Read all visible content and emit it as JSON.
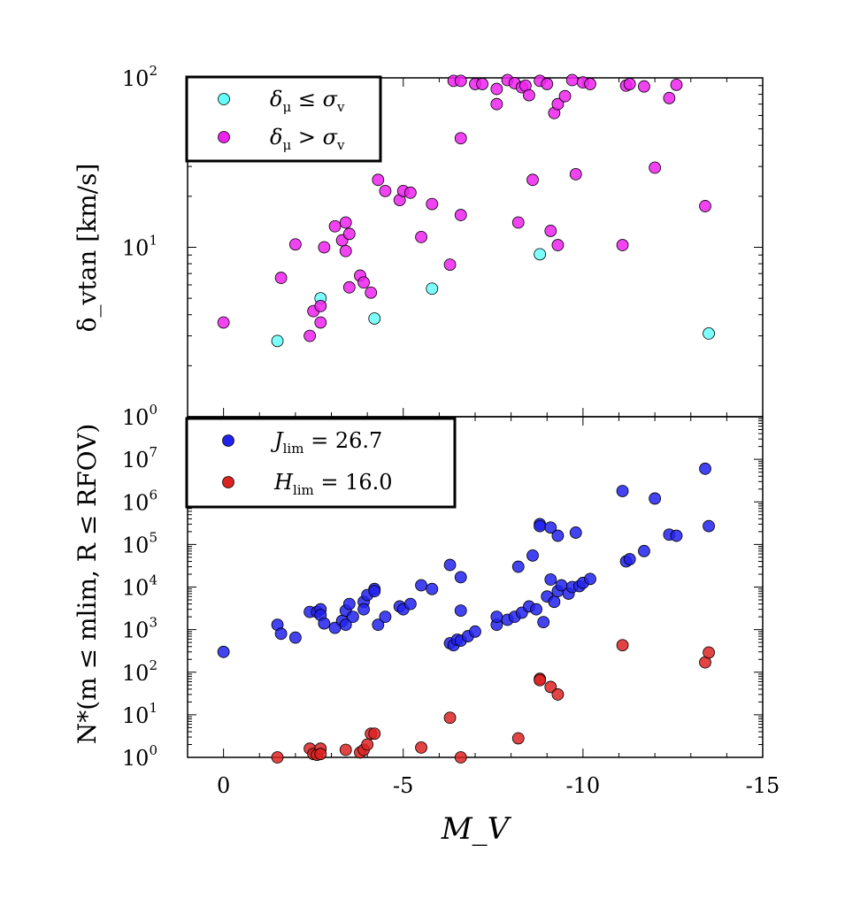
{
  "chart_data": [
    {
      "type": "scatter",
      "panel": "top",
      "ylabel": "δ_vtan [km/s]",
      "xlabel": "",
      "xlim": [
        1,
        -15
      ],
      "ylim": [
        1,
        100
      ],
      "yscale": "log",
      "grid": false,
      "legend_position": "top-left",
      "ytick_labels": [
        {
          "base": "10",
          "exp": "0",
          "value": 1
        },
        {
          "base": "10",
          "exp": "1",
          "value": 10
        },
        {
          "base": "10",
          "exp": "2",
          "value": 100
        }
      ],
      "series": [
        {
          "name": "δμ ≤ σv",
          "legend_main": "δ",
          "legend_sub": "μ",
          "legend_rel": " ≤ σ",
          "legend_sub2": "v",
          "color": "#66ffff",
          "points": [
            [
              -1.5,
              2.8
            ],
            [
              -2.7,
              5.0
            ],
            [
              -4.2,
              3.8
            ],
            [
              -5.8,
              5.7
            ],
            [
              -8.8,
              9.1
            ],
            [
              -13.5,
              3.1
            ]
          ]
        },
        {
          "name": "δμ > σv",
          "legend_main": "δ",
          "legend_sub": "μ",
          "legend_rel": " > σ",
          "legend_sub2": "v",
          "color": "#ee22ee",
          "points": [
            [
              0.0,
              3.6
            ],
            [
              -1.6,
              6.6
            ],
            [
              -2.0,
              10.4
            ],
            [
              -2.4,
              3.0
            ],
            [
              -2.5,
              4.2
            ],
            [
              -2.7,
              3.6
            ],
            [
              -2.7,
              4.5
            ],
            [
              -2.8,
              10.0
            ],
            [
              -3.1,
              13.3
            ],
            [
              -3.3,
              11.0
            ],
            [
              -3.4,
              9.5
            ],
            [
              -3.4,
              14.0
            ],
            [
              -3.5,
              5.8
            ],
            [
              -3.5,
              12.0
            ],
            [
              -3.8,
              6.8
            ],
            [
              -3.9,
              6.2
            ],
            [
              -4.1,
              5.4
            ],
            [
              -4.3,
              25.0
            ],
            [
              -4.5,
              21.5
            ],
            [
              -4.9,
              19.0
            ],
            [
              -5.0,
              21.5
            ],
            [
              -5.2,
              21.0
            ],
            [
              -5.5,
              11.5
            ],
            [
              -5.8,
              18.0
            ],
            [
              -6.3,
              7.9
            ],
            [
              -6.6,
              15.5
            ],
            [
              -6.6,
              44.0
            ],
            [
              -6.4,
              96.0
            ],
            [
              -6.6,
              96.0
            ],
            [
              -7.0,
              92.0
            ],
            [
              -7.2,
              92.0
            ],
            [
              -7.6,
              86.0
            ],
            [
              -7.6,
              70.0
            ],
            [
              -7.9,
              97.0
            ],
            [
              -8.1,
              93.0
            ],
            [
              -8.2,
              14.0
            ],
            [
              -8.3,
              88.0
            ],
            [
              -8.4,
              90.0
            ],
            [
              -8.5,
              79.0
            ],
            [
              -8.6,
              25.0
            ],
            [
              -8.8,
              96.0
            ],
            [
              -9.0,
              92.0
            ],
            [
              -9.1,
              12.5
            ],
            [
              -9.2,
              62.0
            ],
            [
              -9.3,
              10.3
            ],
            [
              -9.3,
              70.0
            ],
            [
              -9.5,
              78.0
            ],
            [
              -9.7,
              97.0
            ],
            [
              -9.8,
              27.0
            ],
            [
              -10.0,
              94.0
            ],
            [
              -10.2,
              92.0
            ],
            [
              -11.1,
              10.3
            ],
            [
              -11.2,
              90.0
            ],
            [
              -11.3,
              92.0
            ],
            [
              -11.7,
              89.0
            ],
            [
              -12.0,
              29.5
            ],
            [
              -12.4,
              76.0
            ],
            [
              -12.6,
              91.0
            ],
            [
              -13.4,
              17.5
            ]
          ]
        }
      ]
    },
    {
      "type": "scatter",
      "panel": "bottom",
      "ylabel": "N*(m ≤ mlim, R ≤ RFOV)",
      "xlabel": "M_V",
      "xlim": [
        1,
        -15
      ],
      "ylim": [
        1,
        100000000
      ],
      "yscale": "log",
      "grid": false,
      "legend_position": "top-left",
      "xtick_labels": [
        {
          "label": "0",
          "value": 0
        },
        {
          "label": "-5",
          "value": -5
        },
        {
          "label": "-10",
          "value": -10
        },
        {
          "label": "-15",
          "value": -15
        }
      ],
      "ytick_labels": [
        {
          "base": "10",
          "exp": "0",
          "value": 1
        },
        {
          "base": "10",
          "exp": "1",
          "value": 10
        },
        {
          "base": "10",
          "exp": "2",
          "value": 100
        },
        {
          "base": "10",
          "exp": "3",
          "value": 1000
        },
        {
          "base": "10",
          "exp": "4",
          "value": 10000
        },
        {
          "base": "10",
          "exp": "5",
          "value": 100000
        },
        {
          "base": "10",
          "exp": "6",
          "value": 1000000
        },
        {
          "base": "10",
          "exp": "7",
          "value": 10000000
        }
      ],
      "series": [
        {
          "name": "Jlim = 26.7",
          "legend_main": "J",
          "legend_sub": "lim",
          "legend_rel": " = 26.7",
          "color": "#2222ee",
          "points": [
            [
              0.0,
              300
            ],
            [
              -1.5,
              1300
            ],
            [
              -1.6,
              800
            ],
            [
              -2.0,
              650
            ],
            [
              -2.4,
              2600
            ],
            [
              -2.6,
              2600
            ],
            [
              -2.7,
              3000
            ],
            [
              -2.7,
              2200
            ],
            [
              -2.8,
              1400
            ],
            [
              -3.1,
              1100
            ],
            [
              -3.3,
              1600
            ],
            [
              -3.4,
              2800
            ],
            [
              -3.4,
              1300
            ],
            [
              -3.5,
              4000
            ],
            [
              -3.6,
              2000
            ],
            [
              -3.9,
              4500
            ],
            [
              -3.9,
              3000
            ],
            [
              -4.0,
              6500
            ],
            [
              -4.2,
              9000
            ],
            [
              -4.2,
              8000
            ],
            [
              -4.3,
              1300
            ],
            [
              -4.5,
              2000
            ],
            [
              -4.9,
              3500
            ],
            [
              -5.0,
              3000
            ],
            [
              -5.2,
              4000
            ],
            [
              -5.5,
              11000
            ],
            [
              -5.8,
              9000
            ],
            [
              -6.3,
              33000
            ],
            [
              -6.3,
              480
            ],
            [
              -6.4,
              430
            ],
            [
              -6.5,
              580
            ],
            [
              -6.6,
              550
            ],
            [
              -6.6,
              2800
            ],
            [
              -6.6,
              17000
            ],
            [
              -6.8,
              700
            ],
            [
              -7.0,
              900
            ],
            [
              -7.6,
              1300
            ],
            [
              -7.6,
              2000
            ],
            [
              -7.9,
              1700
            ],
            [
              -8.1,
              2000
            ],
            [
              -8.2,
              30000
            ],
            [
              -8.3,
              2500
            ],
            [
              -8.5,
              3500
            ],
            [
              -8.6,
              55000
            ],
            [
              -8.7,
              3000
            ],
            [
              -8.8,
              300000
            ],
            [
              -8.8,
              270000
            ],
            [
              -8.9,
              1500
            ],
            [
              -9.0,
              6000
            ],
            [
              -9.1,
              250000
            ],
            [
              -9.1,
              15000
            ],
            [
              -9.2,
              4500
            ],
            [
              -9.3,
              160000
            ],
            [
              -9.3,
              8000
            ],
            [
              -9.4,
              11000
            ],
            [
              -9.6,
              7000
            ],
            [
              -9.7,
              10000
            ],
            [
              -9.8,
              190000
            ],
            [
              -9.9,
              10500
            ],
            [
              -10.0,
              12500
            ],
            [
              -10.2,
              15500
            ],
            [
              -11.1,
              1800000
            ],
            [
              -11.2,
              40000
            ],
            [
              -11.3,
              45000
            ],
            [
              -11.7,
              70000
            ],
            [
              -12.0,
              1200000
            ],
            [
              -12.4,
              170000
            ],
            [
              -12.6,
              160000
            ],
            [
              -13.4,
              6000000
            ],
            [
              -13.5,
              270000
            ]
          ]
        },
        {
          "name": "Hlim = 16.0",
          "legend_main": "H",
          "legend_sub": "lim",
          "legend_rel": " = 16.0",
          "color": "#dd2222",
          "points": [
            [
              -1.5,
              1.0
            ],
            [
              -2.4,
              1.6
            ],
            [
              -2.5,
              1.2
            ],
            [
              -2.6,
              1.15
            ],
            [
              -2.7,
              1.6
            ],
            [
              -2.7,
              1.2
            ],
            [
              -3.4,
              1.5
            ],
            [
              -3.8,
              1.3
            ],
            [
              -3.9,
              1.5
            ],
            [
              -4.0,
              2.0
            ],
            [
              -4.1,
              3.6
            ],
            [
              -4.2,
              3.6
            ],
            [
              -5.5,
              1.7
            ],
            [
              -6.3,
              8.5
            ],
            [
              -6.6,
              1.0
            ],
            [
              -8.2,
              2.8
            ],
            [
              -8.8,
              70
            ],
            [
              -8.8,
              65
            ],
            [
              -9.1,
              45
            ],
            [
              -9.3,
              30
            ],
            [
              -11.1,
              430
            ],
            [
              -13.4,
              170
            ],
            [
              -13.5,
              290
            ]
          ]
        }
      ]
    }
  ]
}
